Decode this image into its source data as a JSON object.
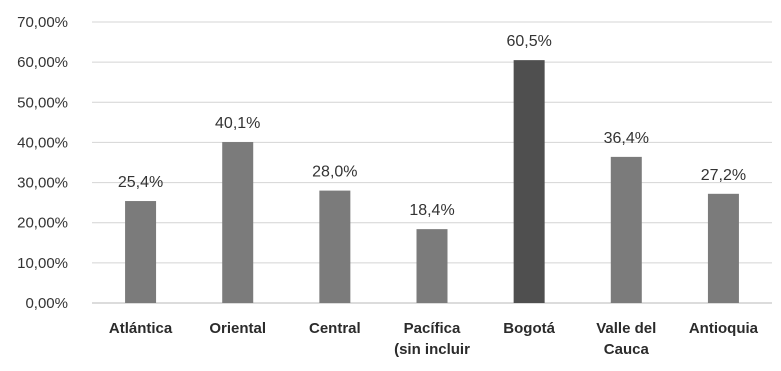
{
  "chart_data": {
    "type": "bar",
    "categories": [
      [
        "Atlántica"
      ],
      [
        "Oriental"
      ],
      [
        "Central"
      ],
      [
        "Pacífica",
        "(sin incluir"
      ],
      [
        "Bogotá"
      ],
      [
        "Valle del",
        "Cauca"
      ],
      [
        "Antioquia"
      ]
    ],
    "values": [
      25.4,
      40.1,
      28.0,
      18.4,
      60.5,
      36.4,
      27.2
    ],
    "data_labels": [
      "25,4%",
      "40,1%",
      "28,0%",
      "18,4%",
      "60,5%",
      "36,4%",
      "27,2%"
    ],
    "highlight_index": 4,
    "ylim": [
      0,
      70
    ],
    "yticks": [
      0,
      10,
      20,
      30,
      40,
      50,
      60,
      70
    ],
    "ytick_labels": [
      "0,00%",
      "10,00%",
      "20,00%",
      "30,00%",
      "40,00%",
      "50,00%",
      "60,00%",
      "70,00%"
    ],
    "grid": true,
    "title": "",
    "xlabel": "",
    "ylabel": "",
    "colors": {
      "bar": "#7b7b7b",
      "highlight": "#4f4f4f",
      "grid": "#d4d4d4",
      "axis": "#b8b8b8"
    }
  }
}
